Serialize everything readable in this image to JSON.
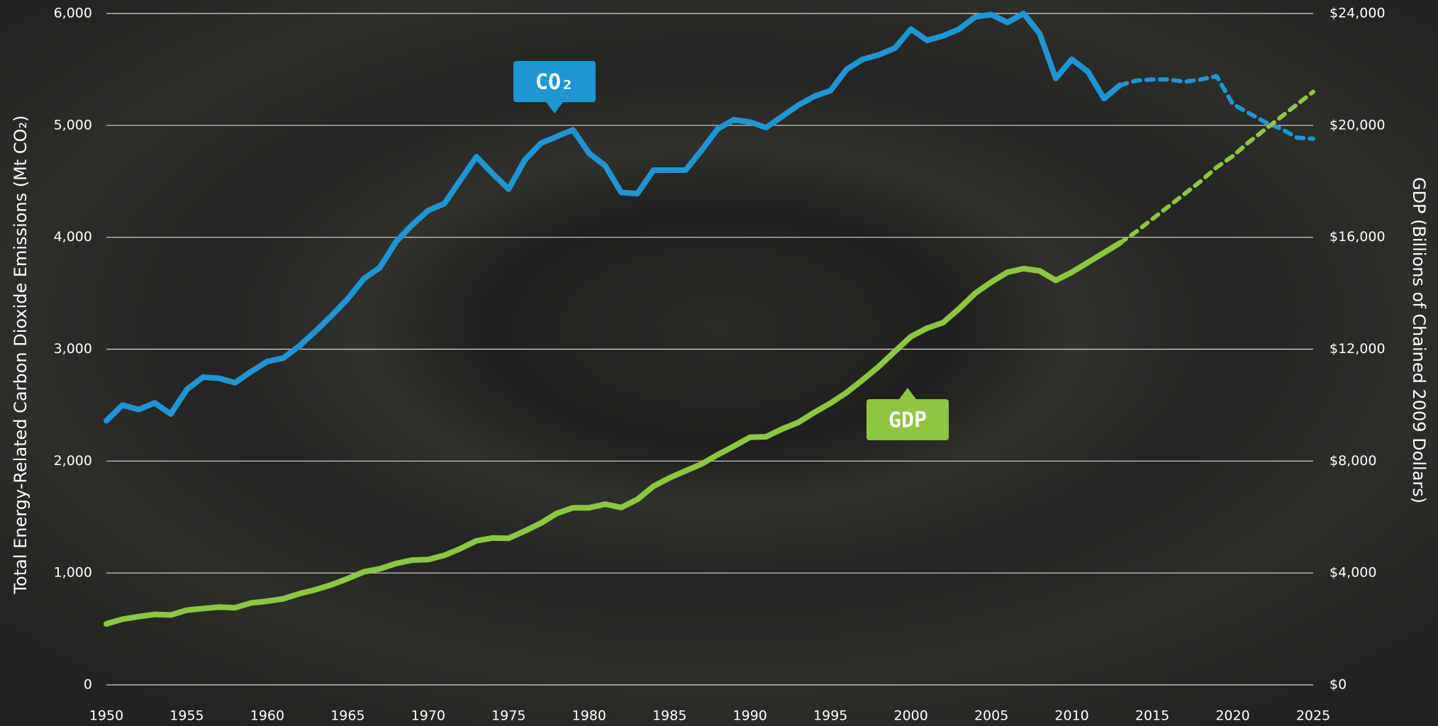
{
  "chart_data": {
    "type": "line",
    "ylabel": "Total Energy-Related Carbon Dioxide Emissions (Mt CO₂)",
    "y2label": "GDP (Billions of Chained 2009 Dollars)",
    "x": [
      1950,
      1951,
      1952,
      1953,
      1954,
      1955,
      1956,
      1957,
      1958,
      1959,
      1960,
      1961,
      1962,
      1963,
      1964,
      1965,
      1966,
      1967,
      1968,
      1969,
      1970,
      1971,
      1972,
      1973,
      1974,
      1975,
      1976,
      1977,
      1978,
      1979,
      1980,
      1981,
      1982,
      1983,
      1984,
      1985,
      1986,
      1987,
      1988,
      1989,
      1990,
      1991,
      1992,
      1993,
      1994,
      1995,
      1996,
      1997,
      1998,
      1999,
      2000,
      2001,
      2002,
      2003,
      2004,
      2005,
      2006,
      2007,
      2008,
      2009,
      2010,
      2011,
      2012,
      2013,
      2014,
      2015,
      2016,
      2017,
      2018,
      2019,
      2020,
      2021,
      2022,
      2023,
      2024,
      2025
    ],
    "series": [
      {
        "name": "CO₂",
        "color": "#1e96d2",
        "dash_from": 2013,
        "values": [
          2360,
          2500,
          2460,
          2520,
          2420,
          2640,
          2750,
          2740,
          2700,
          2800,
          2890,
          2920,
          3030,
          3160,
          3300,
          3450,
          3630,
          3730,
          3960,
          4110,
          4240,
          4300,
          4510,
          4720,
          4570,
          4430,
          4690,
          4840,
          4900,
          4960,
          4750,
          4640,
          4400,
          4390,
          4600,
          4600,
          4600,
          4780,
          4970,
          5050,
          5030,
          4980,
          5080,
          5180,
          5260,
          5310,
          5500,
          5590,
          5630,
          5690,
          5860,
          5760,
          5800,
          5860,
          5970,
          5990,
          5920,
          6000,
          5820,
          5420,
          5590,
          5480,
          5240,
          5360,
          5400,
          5410,
          5410,
          5390,
          5410,
          5440,
          5190,
          5110,
          5030,
          4970,
          4890,
          4880
        ]
      },
      {
        "name": "GDP",
        "color": "#8dc63f",
        "dash_from": 2013,
        "axis": "y2",
        "values": [
          2180,
          2350,
          2440,
          2520,
          2500,
          2670,
          2730,
          2780,
          2760,
          2930,
          2990,
          3080,
          3260,
          3400,
          3580,
          3800,
          4040,
          4150,
          4340,
          4460,
          4480,
          4630,
          4870,
          5150,
          5250,
          5240,
          5500,
          5780,
          6130,
          6330,
          6330,
          6460,
          6340,
          6630,
          7100,
          7400,
          7650,
          7900,
          8230,
          8530,
          8850,
          8870,
          9150,
          9380,
          9740,
          10070,
          10450,
          10900,
          11380,
          11920,
          12450,
          12750,
          12950,
          13450,
          14000,
          14400,
          14750,
          14880,
          14800,
          14460,
          14750,
          15100,
          15450,
          15800,
          16200,
          16650,
          17100,
          17550,
          18000,
          18500,
          18900,
          19400,
          19850,
          20300,
          20750,
          21200
        ]
      }
    ],
    "xlim": [
      1950,
      2025
    ],
    "xticks": [
      1950,
      1955,
      1960,
      1965,
      1970,
      1975,
      1980,
      1985,
      1990,
      1995,
      2000,
      2005,
      2010,
      2015,
      2020,
      2025
    ],
    "ylim": [
      0,
      6000
    ],
    "yticks": [
      0,
      {
        "value": 1000,
        "label": "1,000"
      },
      {
        "value": 2000,
        "label": "2,000"
      },
      {
        "value": 3000,
        "label": "3,000"
      },
      {
        "value": 4000,
        "label": "4,000"
      },
      {
        "value": 5000,
        "label": "5,000"
      },
      {
        "value": 6000,
        "label": "6,000"
      }
    ],
    "y2lim": [
      0,
      24000
    ],
    "y2ticks": [
      {
        "value": 0,
        "label": "$0"
      },
      {
        "value": 4000,
        "label": "$4,000"
      },
      {
        "value": 8000,
        "label": "$8,000"
      },
      {
        "value": 12000,
        "label": "$12,000"
      },
      {
        "value": 16000,
        "label": "$16,000"
      },
      {
        "value": 20000,
        "label": "$20,000"
      },
      {
        "value": 24000,
        "label": "$24,000"
      }
    ],
    "grid": true
  }
}
